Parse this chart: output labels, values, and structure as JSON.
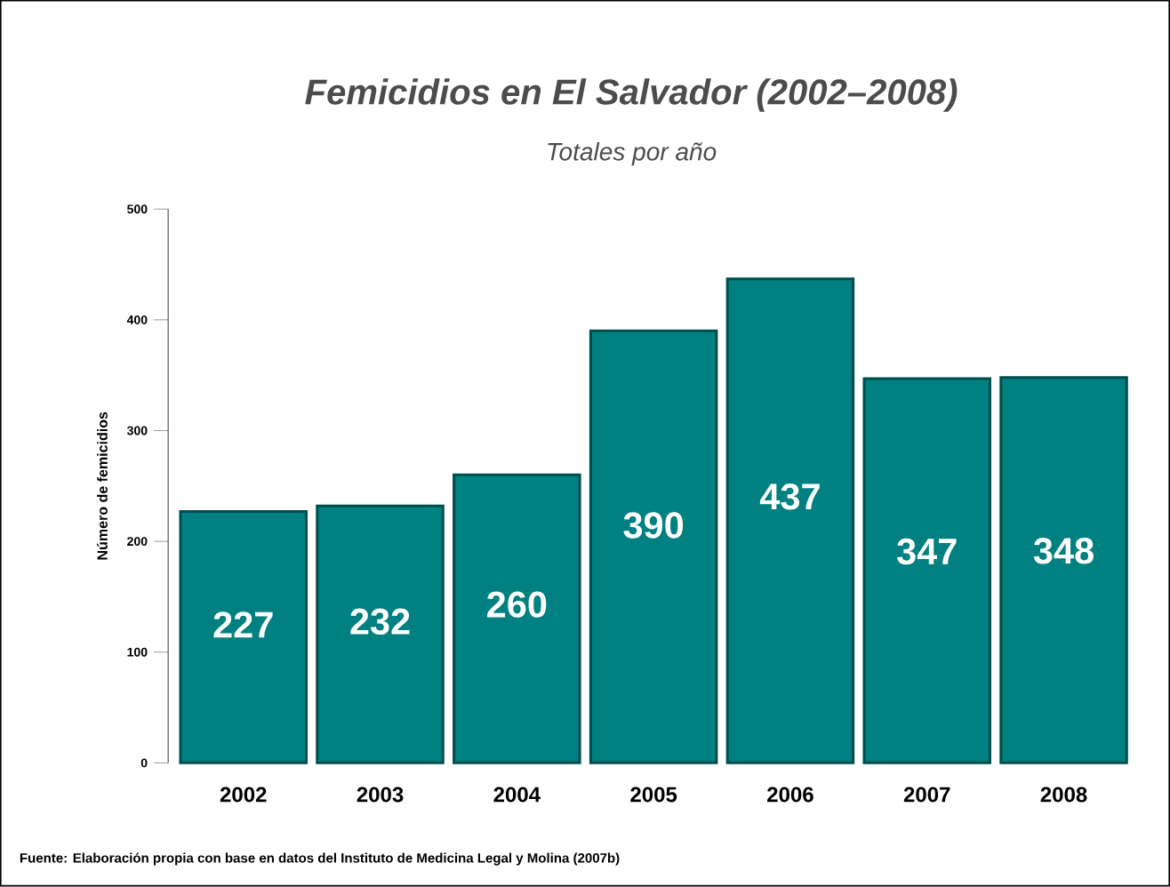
{
  "chart_data": {
    "type": "bar",
    "title": "Femicidios en El Salvador (2002–2008)",
    "subtitle": "Totales por año",
    "ylabel": "Número de femicidios",
    "categories": [
      "2002",
      "2003",
      "2004",
      "2005",
      "2006",
      "2007",
      "2008"
    ],
    "values": [
      227,
      232,
      260,
      390,
      437,
      347,
      348
    ],
    "color": "#008080",
    "ylim": [
      0,
      500
    ],
    "yticks": [
      0,
      100,
      200,
      300,
      400,
      500
    ],
    "data_labels": true,
    "grid": false,
    "annotations": [
      "Fuente: Elaboración propia con base en datos del Instituto de Medicina Legal y Molina (2007b)"
    ]
  }
}
